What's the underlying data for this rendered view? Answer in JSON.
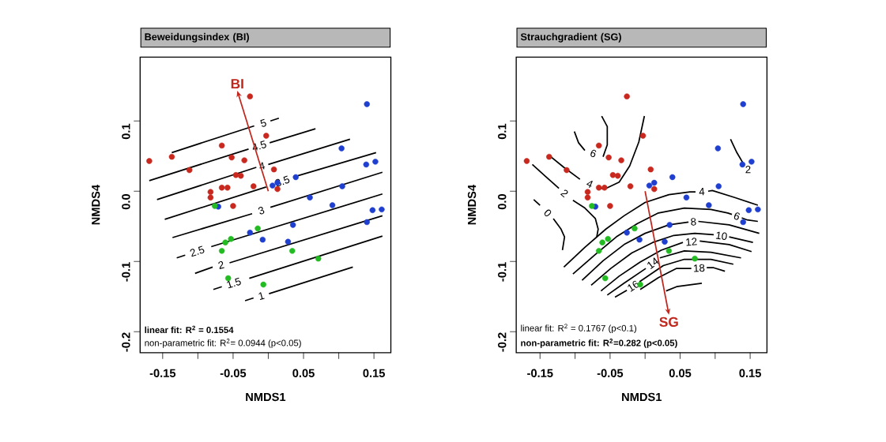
{
  "chart_data": [
    {
      "type": "scatter",
      "title": "Beweidungsindex (BI)",
      "xlabel": "NMDS1",
      "ylabel": "NMDS4",
      "xlim": [
        -0.182,
        0.174
      ],
      "ylim": [
        -0.23,
        0.191
      ],
      "xticks": [
        -0.15,
        {
          "value": -0.1,
          "label": null
        },
        -0.05,
        {
          "value": 0,
          "label": null
        },
        0.05,
        {
          "value": 0.1,
          "label": null
        },
        0.15
      ],
      "yticks": [
        -0.2,
        -0.1,
        {
          "value": 0,
          "label": "0.0"
        },
        0.1
      ],
      "marker": "circle",
      "annotations": [
        "BI",
        "**linear fit: R$^{2}$ = 0.1554**",
        "non-parametric fit: R$^{2}$= 0.0944 (p<0.05)"
      ],
      "series": [
        {
          "color": "#c8281e",
          "x": [
            -0.026,
            -0.003,
            -0.066,
            -0.137,
            -0.169,
            -0.052,
            -0.034,
            -0.112,
            0.008,
            -0.046,
            -0.039,
            -0.066,
            -0.058,
            -0.021,
            -0.082,
            -0.082,
            -0.05,
            0.013
          ],
          "values": [
            0.135,
            0.079,
            0.065,
            0.049,
            0.043,
            0.048,
            0.044,
            0.03,
            0.031,
            0.023,
            0.022,
            0.005,
            0.005,
            0.007,
            -0.001,
            -0.009,
            -0.021,
            0.003
          ]
        },
        {
          "color": "#1f3fd0",
          "x": [
            0.14,
            0.104,
            0.139,
            0.152,
            0.039,
            0.013,
            0.006,
            0.105,
            0.059,
            0.091,
            -0.071,
            0.148,
            0.161,
            0.14,
            0.035,
            -0.026,
            -0.008,
            0.028
          ],
          "values": [
            0.124,
            0.061,
            0.038,
            0.042,
            0.02,
            0.012,
            0.008,
            0.007,
            -0.009,
            -0.02,
            -0.022,
            -0.027,
            -0.026,
            -0.044,
            -0.048,
            -0.059,
            -0.069,
            -0.072
          ]
        },
        {
          "color": "#22bb22",
          "x": [
            -0.076,
            -0.015,
            -0.053,
            -0.061,
            -0.066,
            0.034,
            0.071,
            -0.057,
            -0.007
          ],
          "values": [
            -0.021,
            -0.053,
            -0.068,
            -0.073,
            -0.085,
            -0.085,
            -0.096,
            -0.124,
            -0.133
          ]
        },
        {
          "type": "line",
          "name": "5",
          "color": "#000000",
          "marker": "none",
          "x": [
            -0.137,
            -0.02,
            -0.007,
            0.003,
            0.015
          ],
          "values": [
            0.055,
            0.093,
            null,
            0.1,
            0.104
          ]
        },
        {
          "type": "line",
          "name": "4.5",
          "color": "#000000",
          "marker": "none",
          "x": [
            -0.169,
            -0.028,
            -0.013,
            0.002,
            0.067
          ],
          "values": [
            0.015,
            0.06,
            null,
            0.069,
            0.089
          ]
        },
        {
          "type": "line",
          "name": "4",
          "color": "#000000",
          "marker": "none",
          "x": [
            -0.158,
            -0.017,
            -0.009,
            0.0,
            0.116
          ],
          "values": [
            -0.012,
            0.034,
            null,
            0.038,
            0.074
          ]
        },
        {
          "type": "line",
          "name": "3.5",
          "color": "#000000",
          "marker": "none",
          "x": [
            -0.147,
            -0.003,
            0.02,
            0.042,
            0.153
          ],
          "values": [
            -0.04,
            0.006,
            null,
            0.022,
            0.055
          ]
        },
        {
          "type": "line",
          "name": "3",
          "color": "#000000",
          "marker": "none",
          "x": [
            -0.136,
            -0.023,
            -0.01,
            0.003,
            0.162
          ],
          "values": [
            -0.066,
            -0.032,
            null,
            -0.023,
            0.027
          ]
        },
        {
          "type": "line",
          "name": "2.5",
          "color": "#000000",
          "marker": "none",
          "x": [
            -0.13,
            -0.118,
            -0.101,
            -0.081,
            0.162
          ],
          "values": [
            -0.095,
            -0.091,
            null,
            -0.079,
            -0.004
          ]
        },
        {
          "type": "line",
          "name": "2",
          "color": "#000000",
          "marker": "none",
          "x": [
            -0.104,
            -0.079,
            -0.067,
            -0.055,
            0.162
          ],
          "values": [
            -0.117,
            -0.108,
            null,
            -0.102,
            -0.035
          ]
        },
        {
          "type": "line",
          "name": "1.5",
          "color": "#000000",
          "marker": "none",
          "x": [
            -0.078,
            -0.066,
            -0.049,
            -0.027,
            0.162
          ],
          "values": [
            -0.14,
            -0.136,
            null,
            -0.124,
            -0.064
          ]
        },
        {
          "type": "line",
          "name": "1",
          "color": "#000000",
          "marker": "none",
          "x": [
            -0.033,
            -0.021,
            -0.01,
            0.001,
            0.12
          ],
          "values": [
            -0.156,
            -0.152,
            null,
            -0.146,
            -0.108
          ]
        }
      ]
    },
    {
      "type": "scatter",
      "title": "Strauchgradient (SG)",
      "xlabel": "NMDS1",
      "ylabel": "NMDS4",
      "xlim": [
        -0.184,
        0.174
      ],
      "ylim": [
        -0.23,
        0.191
      ],
      "xticks": [
        -0.15,
        {
          "value": -0.1,
          "label": null
        },
        -0.05,
        {
          "value": 0,
          "label": null
        },
        0.05,
        {
          "value": 0.1,
          "label": null
        },
        0.15
      ],
      "yticks": [
        -0.2,
        -0.1,
        {
          "value": 0,
          "label": "0.0"
        },
        0.1
      ],
      "marker": "circle",
      "annotations": [
        "SG",
        "linear fit: R$^{2}$ = 0.1767 (p<0.1)",
        "**non-parametric fit: R$^{2}$=0.282 (p<0.05)**"
      ],
      "series": [
        {
          "color": "#c8281e",
          "x": [
            -0.026,
            -0.003,
            -0.066,
            -0.137,
            -0.169,
            -0.052,
            -0.034,
            -0.112,
            0.008,
            -0.046,
            -0.039,
            -0.066,
            -0.058,
            -0.021,
            -0.082,
            -0.082,
            -0.05,
            0.013
          ],
          "values": [
            0.135,
            0.079,
            0.065,
            0.049,
            0.043,
            0.048,
            0.044,
            0.03,
            0.031,
            0.023,
            0.022,
            0.005,
            0.005,
            0.007,
            -0.001,
            -0.009,
            -0.021,
            0.003
          ]
        },
        {
          "color": "#1f3fd0",
          "x": [
            0.14,
            0.104,
            0.139,
            0.152,
            0.039,
            0.013,
            0.006,
            0.105,
            0.059,
            0.091,
            -0.071,
            0.148,
            0.161,
            0.14,
            0.035,
            -0.026,
            -0.008,
            0.028
          ],
          "values": [
            0.124,
            0.061,
            0.038,
            0.042,
            0.02,
            0.012,
            0.008,
            0.007,
            -0.009,
            -0.02,
            -0.022,
            -0.027,
            -0.026,
            -0.044,
            -0.048,
            -0.059,
            -0.069,
            -0.072
          ]
        },
        {
          "color": "#22bb22",
          "x": [
            -0.076,
            -0.015,
            -0.053,
            -0.061,
            -0.066,
            0.034,
            0.071,
            -0.057,
            -0.007
          ],
          "values": [
            -0.021,
            -0.053,
            -0.068,
            -0.073,
            -0.085,
            -0.085,
            -0.096,
            -0.124,
            -0.133
          ]
        },
        {
          "type": "line",
          "name": "6",
          "color": "#000000",
          "marker": "none",
          "x": [
            -0.101,
            -0.095,
            -0.086,
            -0.074,
            -0.06,
            -0.054,
            -0.054,
            -0.062
          ],
          "values": [
            0.085,
            0.069,
            0.058,
            null,
            0.049,
            0.066,
            0.092,
            0.107
          ]
        },
        {
          "type": "line",
          "name": "4",
          "color": "#000000",
          "marker": "none",
          "x": [
            -0.137,
            -0.116,
            -0.093,
            -0.079,
            -0.065,
            -0.056,
            -0.037,
            -0.022,
            -0.009,
            -0.001
          ],
          "values": [
            0.051,
            0.034,
            0.017,
            null,
            0.004,
            0.004,
            0.013,
            0.036,
            0.07,
            0.107
          ]
        },
        {
          "type": "line",
          "name": "2",
          "color": "#000000",
          "marker": "none",
          "x": [
            -0.161,
            -0.142,
            -0.123,
            -0.115,
            -0.103,
            -0.086,
            -0.071,
            -0.067,
            -0.069
          ],
          "values": [
            0.038,
            0.021,
            0.004,
            null,
            -0.013,
            -0.024,
            -0.039,
            -0.054,
            -0.065
          ]
        },
        {
          "type": "line",
          "name": "0",
          "color": "#000000",
          "marker": "none",
          "x": [
            -0.159,
            -0.15,
            -0.139,
            -0.131,
            -0.12,
            -0.115,
            -0.118
          ],
          "values": [
            -0.012,
            -0.02,
            null,
            -0.039,
            -0.054,
            -0.065,
            -0.084
          ]
        },
        {
          "type": "line",
          "name": "2",
          "color": "#000000",
          "marker": "none",
          "x": [
            0.122,
            0.131,
            0.141
          ],
          "values": [
            0.074,
            0.055,
            0.038
          ]
        },
        {
          "type": "line",
          "name": "4",
          "color": "#000000",
          "marker": "none",
          "x": [
            -0.116,
            -0.086,
            -0.056,
            -0.03,
            0.0,
            0.034,
            0.064,
            0.072,
            0.081,
            0.09,
            0.096,
            0.128,
            0.161
          ],
          "values": [
            -0.108,
            -0.08,
            -0.054,
            -0.035,
            -0.016,
            -0.005,
            -0.001,
            -0.001,
            null,
            0.0,
            0.001,
            -0.009,
            -0.02
          ]
        },
        {
          "type": "line",
          "name": "6",
          "color": "#000000",
          "marker": "none",
          "x": [
            -0.103,
            -0.071,
            -0.041,
            -0.011,
            0.019,
            0.056,
            0.094,
            0.118,
            0.124,
            0.131,
            0.138,
            0.146,
            0.161
          ],
          "values": [
            -0.118,
            -0.09,
            -0.065,
            -0.046,
            -0.031,
            -0.024,
            -0.026,
            -0.031,
            -0.033,
            null,
            -0.038,
            -0.041,
            -0.043
          ]
        },
        {
          "type": "line",
          "name": "8",
          "color": "#000000",
          "marker": "none",
          "x": [
            -0.09,
            -0.06,
            -0.03,
            0.0,
            0.034,
            0.062,
            0.069,
            0.076,
            0.12,
            0.163
          ],
          "values": [
            -0.127,
            -0.099,
            -0.076,
            -0.06,
            -0.048,
            -0.044,
            null,
            -0.043,
            -0.048,
            -0.06
          ]
        },
        {
          "type": "line",
          "name": "10",
          "color": "#000000",
          "marker": "none",
          "x": [
            -0.077,
            -0.049,
            -0.019,
            0.011,
            0.041,
            0.071,
            0.098,
            0.109,
            0.12,
            0.154
          ],
          "values": [
            -0.134,
            -0.11,
            -0.088,
            -0.073,
            -0.063,
            -0.06,
            -0.062,
            null,
            -0.065,
            -0.073
          ]
        },
        {
          "type": "line",
          "name": "12",
          "color": "#000000",
          "marker": "none",
          "x": [
            -0.063,
            -0.037,
            -0.007,
            0.023,
            0.054,
            0.066,
            0.078,
            0.12,
            0.152
          ],
          "values": [
            -0.142,
            -0.121,
            -0.101,
            -0.084,
            -0.073,
            null,
            -0.071,
            -0.076,
            -0.086
          ]
        },
        {
          "type": "line",
          "name": "14",
          "color": "#000000",
          "marker": "none",
          "x": [
            -0.054,
            -0.03,
            0.001,
            0.011,
            0.021,
            0.056,
            0.094,
            0.137
          ],
          "values": [
            -0.148,
            -0.131,
            -0.11,
            null,
            -0.095,
            -0.085,
            -0.087,
            -0.095
          ]
        },
        {
          "type": "line",
          "name": "16",
          "color": "#000000",
          "marker": "none",
          "x": [
            -0.043,
            -0.026,
            -0.017,
            -0.008,
            0.026,
            0.056,
            0.094,
            0.126
          ],
          "values": [
            -0.151,
            -0.141,
            null,
            -0.129,
            -0.106,
            -0.097,
            -0.097,
            -0.104
          ]
        },
        {
          "type": "line",
          "name": "18",
          "color": "#000000",
          "marker": "none",
          "x": [
            -0.007,
            0.019,
            0.045,
            0.066,
            0.077,
            0.088,
            0.098,
            0.114
          ],
          "values": [
            -0.14,
            -0.123,
            -0.11,
            -0.11,
            null,
            -0.109,
            -0.109,
            -0.114
          ]
        },
        {
          "type": "line",
          "color": "#000000",
          "marker": "none",
          "x": [
            0.03,
            0.045,
            0.081
          ],
          "values": [
            -0.142,
            -0.136,
            -0.131
          ]
        }
      ]
    }
  ]
}
